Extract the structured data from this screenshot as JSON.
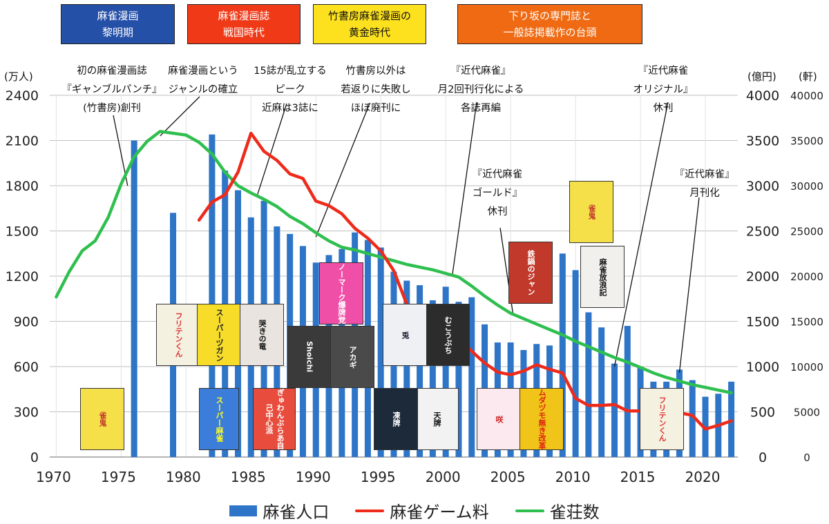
{
  "eras": [
    {
      "line1": "麻雀漫画",
      "line2": "黎明期",
      "color": "#2550a8",
      "text_color": "#ffffff"
    },
    {
      "line1": "麻雀漫画誌",
      "line2": "戦国時代",
      "color": "#f03a17",
      "text_color": "#ffffff"
    },
    {
      "line1": "竹書房麻雀漫画の",
      "line2": "黄金時代",
      "color": "#fde11e",
      "text_color": "#111111"
    },
    {
      "line1": "下り坂の専門誌と",
      "line2": "一般誌掲載作の台頭",
      "color": "#ef6a12",
      "text_color": "#ffffff"
    }
  ],
  "annotations": [
    {
      "lines": [
        "初の麻雀漫画誌",
        "『ギャンブルパンチ』",
        "(竹書房)創刊"
      ]
    },
    {
      "lines": [
        "麻雀漫画という",
        "ジャンルの確立"
      ]
    },
    {
      "lines": [
        "15誌が乱立する",
        "ピーク",
        "近麻は3誌に"
      ]
    },
    {
      "lines": [
        "竹書房以外は",
        "若返りに失敗し",
        "ほぼ廃刊に"
      ]
    },
    {
      "lines": [
        "『近代麻雀』",
        "月2回刊行化による",
        "各誌再編"
      ]
    },
    {
      "lines": [
        "『近代麻雀",
        "ゴールド』",
        "休刊"
      ]
    },
    {
      "lines": [
        "『近代麻雀",
        "オリジナル』",
        "休刊"
      ]
    },
    {
      "lines": [
        "『近代麻雀』",
        "月刊化"
      ]
    }
  ],
  "units": {
    "left": "(万人)",
    "right1": "(億円)",
    "right2": "(軒)"
  },
  "covers": [
    {
      "title": "雀鬼",
      "bg": "#f6e04a",
      "fg": "#c0392b"
    },
    {
      "title": "フリテンくん",
      "bg": "#f4f1e0",
      "fg": "#d33"
    },
    {
      "title": "スーパーヅガン",
      "bg": "#f7dd2a",
      "fg": "#222"
    },
    {
      "title": "哭きの竜",
      "bg": "#e9e4df",
      "fg": "#111"
    },
    {
      "title": "スーパー麻雀",
      "bg": "#3b7dd8",
      "fg": "#ff2"
    },
    {
      "title": "ぎゅわんぶらあ自己中心派",
      "bg": "#e74c3c",
      "fg": "#fff"
    },
    {
      "title": "Shoichi",
      "bg": "#3a3a3a",
      "fg": "#fff"
    },
    {
      "title": "ノーマーク爆牌党",
      "bg": "#ef4fa6",
      "fg": "#fff"
    },
    {
      "title": "アカギ",
      "bg": "#4a4a4a",
      "fg": "#fff"
    },
    {
      "title": "むこうぶち",
      "bg": "#2c2c2c",
      "fg": "#fff"
    },
    {
      "title": "兎",
      "bg": "#eef0f4",
      "fg": "#223"
    },
    {
      "title": "天牌",
      "bg": "#f2f2f2",
      "fg": "#111"
    },
    {
      "title": "凍牌",
      "bg": "#1d2a3a",
      "fg": "#fff"
    },
    {
      "title": "咲",
      "bg": "#fbe9ef",
      "fg": "#c22"
    },
    {
      "title": "ムダヅモ無き改革",
      "bg": "#f0c419",
      "fg": "#d21"
    },
    {
      "title": "鉄鍋のジャン",
      "bg": "#c0392b",
      "fg": "#fff"
    },
    {
      "title": "麻雀放浪記",
      "bg": "#f2f0ec",
      "fg": "#111"
    }
  ],
  "chart_data": {
    "type": "bar+line",
    "x_range": [
      1970,
      2022
    ],
    "x_ticks": [
      1970,
      1975,
      1980,
      1985,
      1990,
      1995,
      2000,
      2005,
      2010,
      2015,
      2020
    ],
    "y_left": {
      "ticks": [
        0,
        300,
        600,
        900,
        1200,
        1500,
        1800,
        2100,
        2400
      ],
      "range": [
        0,
        2400
      ]
    },
    "y_right1": {
      "ticks": [
        0,
        500,
        1000,
        1500,
        2000,
        2500,
        3000,
        3500,
        4000
      ],
      "range": [
        0,
        4000
      ]
    },
    "y_right2": {
      "ticks": [
        0,
        5000,
        10000,
        15000,
        20000,
        25000,
        30000,
        35000,
        40000
      ],
      "range": [
        0,
        40000
      ]
    },
    "series": [
      {
        "name": "麻雀人口",
        "kind": "bar",
        "axis": "left",
        "color": "#2e75c8",
        "points": [
          [
            1976,
            2100
          ],
          [
            1979,
            1620
          ],
          [
            1982,
            2140
          ],
          [
            1983,
            1900
          ],
          [
            1984,
            1770
          ],
          [
            1985,
            1590
          ],
          [
            1986,
            1700
          ],
          [
            1987,
            1530
          ],
          [
            1988,
            1480
          ],
          [
            1989,
            1400
          ],
          [
            1990,
            1290
          ],
          [
            1991,
            1340
          ],
          [
            1992,
            1380
          ],
          [
            1993,
            1490
          ],
          [
            1994,
            1440
          ],
          [
            1995,
            1390
          ],
          [
            1996,
            1230
          ],
          [
            1997,
            1170
          ],
          [
            1998,
            1140
          ],
          [
            1999,
            1040
          ],
          [
            2000,
            1130
          ],
          [
            2001,
            1030
          ],
          [
            2002,
            1060
          ],
          [
            2003,
            880
          ],
          [
            2004,
            760
          ],
          [
            2005,
            760
          ],
          [
            2006,
            710
          ],
          [
            2007,
            750
          ],
          [
            2008,
            740
          ],
          [
            2009,
            1350
          ],
          [
            2010,
            1240
          ],
          [
            2011,
            960
          ],
          [
            2012,
            860
          ],
          [
            2013,
            620
          ],
          [
            2014,
            870
          ],
          [
            2015,
            600
          ],
          [
            2016,
            500
          ],
          [
            2017,
            500
          ],
          [
            2018,
            580
          ],
          [
            2019,
            510
          ],
          [
            2020,
            400
          ],
          [
            2021,
            420
          ],
          [
            2022,
            500
          ]
        ]
      },
      {
        "name": "麻雀ゲーム料",
        "kind": "line",
        "axis": "right1",
        "color": "#ee2a1b",
        "points": [
          [
            1981,
            2620
          ],
          [
            1982,
            2820
          ],
          [
            1983,
            2900
          ],
          [
            1984,
            3150
          ],
          [
            1985,
            3580
          ],
          [
            1986,
            3380
          ],
          [
            1987,
            3280
          ],
          [
            1988,
            3130
          ],
          [
            1989,
            3080
          ],
          [
            1990,
            2830
          ],
          [
            1991,
            2780
          ],
          [
            1992,
            2690
          ],
          [
            1993,
            2530
          ],
          [
            1994,
            2420
          ],
          [
            1995,
            2280
          ],
          [
            1996,
            2060
          ],
          [
            1997,
            1690
          ],
          [
            1998,
            1520
          ],
          [
            1999,
            1440
          ],
          [
            2000,
            1370
          ],
          [
            2001,
            1310
          ],
          [
            2002,
            1170
          ],
          [
            2003,
            1040
          ],
          [
            2004,
            940
          ],
          [
            2005,
            910
          ],
          [
            2006,
            950
          ],
          [
            2007,
            1020
          ],
          [
            2008,
            970
          ],
          [
            2009,
            930
          ],
          [
            2010,
            650
          ],
          [
            2011,
            570
          ],
          [
            2012,
            570
          ],
          [
            2013,
            580
          ],
          [
            2014,
            510
          ],
          [
            2015,
            510
          ],
          [
            2016,
            500
          ],
          [
            2017,
            500
          ],
          [
            2018,
            490
          ],
          [
            2019,
            460
          ],
          [
            2020,
            310
          ],
          [
            2021,
            350
          ],
          [
            2022,
            400
          ]
        ]
      },
      {
        "name": "雀荘数",
        "kind": "line",
        "axis": "right2",
        "color": "#2fbf4f",
        "points": [
          [
            1970,
            17700
          ],
          [
            1971,
            20500
          ],
          [
            1972,
            22800
          ],
          [
            1973,
            23900
          ],
          [
            1974,
            26500
          ],
          [
            1975,
            30200
          ],
          [
            1976,
            33200
          ],
          [
            1977,
            34900
          ],
          [
            1978,
            36000
          ],
          [
            1979,
            35800
          ],
          [
            1980,
            35600
          ],
          [
            1981,
            34800
          ],
          [
            1982,
            33500
          ],
          [
            1983,
            31500
          ],
          [
            1984,
            30000
          ],
          [
            1985,
            29200
          ],
          [
            1986,
            28500
          ],
          [
            1987,
            27700
          ],
          [
            1988,
            26600
          ],
          [
            1989,
            25800
          ],
          [
            1990,
            24800
          ],
          [
            1991,
            23900
          ],
          [
            1992,
            23200
          ],
          [
            1993,
            22900
          ],
          [
            1994,
            22500
          ],
          [
            1995,
            22100
          ],
          [
            1996,
            21700
          ],
          [
            1997,
            21300
          ],
          [
            1998,
            21000
          ],
          [
            1999,
            20700
          ],
          [
            2000,
            20300
          ],
          [
            2001,
            19900
          ],
          [
            2002,
            18900
          ],
          [
            2003,
            17800
          ],
          [
            2004,
            16800
          ],
          [
            2005,
            15900
          ],
          [
            2006,
            15300
          ],
          [
            2007,
            14700
          ],
          [
            2008,
            14100
          ],
          [
            2009,
            13500
          ],
          [
            2010,
            12800
          ],
          [
            2011,
            12200
          ],
          [
            2012,
            11600
          ],
          [
            2013,
            11000
          ],
          [
            2014,
            10500
          ],
          [
            2015,
            9900
          ],
          [
            2016,
            9300
          ],
          [
            2017,
            8800
          ],
          [
            2018,
            8400
          ],
          [
            2019,
            8000
          ],
          [
            2020,
            7700
          ],
          [
            2021,
            7400
          ],
          [
            2022,
            7100
          ]
        ]
      }
    ],
    "legend": {
      "placement": "bottom"
    }
  }
}
